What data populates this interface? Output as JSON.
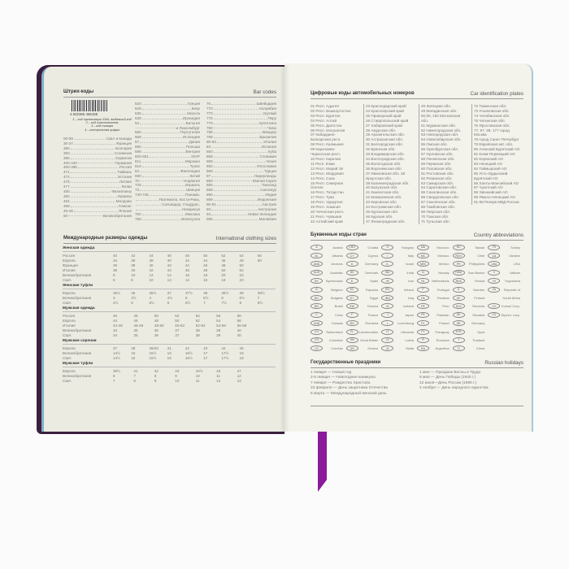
{
  "left_page": {
    "barcodes": {
      "title_ru": "Штрих-коды",
      "title_en": "Bar codes",
      "sample_number": "4 602365 456186",
      "legend": [
        "1 – код организации EAN, выдавший код",
        "2 – код изготовителя",
        "3 – код товара",
        "4 – контрольная цифра"
      ],
      "columns": [
        [
          [
            "00-09",
            "США и Канада"
          ],
          [
            "30-37",
            "Франция"
          ],
          [
            "380",
            "Болгария"
          ],
          [
            "383",
            "Словения"
          ],
          [
            "385",
            "Хорватия"
          ],
          [
            "400-440",
            "Германия"
          ],
          [
            "460-469",
            "Россия"
          ],
          [
            "471",
            "Тайвань"
          ],
          [
            "474",
            "Эстония"
          ],
          [
            "475",
            "Латвия"
          ],
          [
            "477",
            "Литва"
          ],
          [
            "480",
            "Филиппины"
          ],
          [
            "482",
            "Украина"
          ],
          [
            "484",
            "Молдова"
          ],
          [
            "489",
            "Гонконг"
          ],
          [
            "45-49",
            "Япония"
          ],
          [
            "50",
            "Великобритания"
          ]
        ],
        [
          [
            "520",
            "Греция"
          ],
          [
            "529",
            "Кипр"
          ],
          [
            "535",
            "Мальта"
          ],
          [
            "539",
            "Ирландия"
          ],
          [
            "54",
            "Бельгия"
          ],
          [
            "",
            "и Люксембург"
          ],
          [
            "560",
            "Португалия"
          ],
          [
            "569",
            "Исландия"
          ],
          [
            "57",
            "Дания"
          ],
          [
            "590",
            "Польша"
          ],
          [
            "599",
            "Венгрия"
          ],
          [
            "600-601",
            "ЮАР"
          ],
          [
            "611",
            "Марокко"
          ],
          [
            "619",
            "Тунис"
          ],
          [
            "64",
            "Финляндия"
          ],
          [
            "690",
            "Китай"
          ],
          [
            "70",
            "Норвегия"
          ],
          [
            "729",
            "Израиль"
          ],
          [
            "73",
            "Швеция"
          ],
          [
            "740-745",
            "Панама,"
          ],
          [
            "",
            "Гватемала, Коста-Рика,"
          ],
          [
            "",
            "Сальвадор, Гондурас,"
          ],
          [
            "",
            "Никарагуа"
          ],
          [
            "750",
            "Мексика"
          ],
          [
            "759",
            "Венесуэла"
          ]
        ],
        [
          [
            "76",
            "Швейцария"
          ],
          [
            "770",
            "Колумбия"
          ],
          [
            "773",
            "Уругвай"
          ],
          [
            "775",
            "Перу"
          ],
          [
            "779",
            "Аргентина"
          ],
          [
            "780",
            "Чили"
          ],
          [
            "786",
            "Эквадор"
          ],
          [
            "789",
            "Бразилия"
          ],
          [
            "80-83",
            "Италия"
          ],
          [
            "84",
            "Испания"
          ],
          [
            "850",
            "Куба"
          ],
          [
            "858",
            "Словакия"
          ],
          [
            "859",
            "Чехия"
          ],
          [
            "860",
            "Югославия"
          ],
          [
            "869",
            "Турция"
          ],
          [
            "87",
            "Нидерланды"
          ],
          [
            "880",
            "Южная Корея"
          ],
          [
            "885",
            "Таиланд"
          ],
          [
            "888",
            "Сингапур"
          ],
          [
            "890",
            "Индия"
          ],
          [
            "899",
            "Индонезия"
          ],
          [
            "90-91",
            "Австрия"
          ],
          [
            "93",
            "Австралия"
          ],
          [
            "94",
            "Новая Зеландия"
          ],
          [
            "955",
            "Малайзия"
          ]
        ]
      ]
    },
    "clothing": {
      "title_ru": "Международные размеры одежды",
      "title_en": "International clothing sizes",
      "groups": [
        {
          "name": "Женская одежда",
          "rows": [
            [
              "Россия",
              "40",
              "42",
              "44",
              "46",
              "48",
              "50",
              "52",
              "54",
              "56"
            ],
            [
              "Европа",
              "34",
              "36",
              "38",
              "40",
              "42",
              "44",
              "46",
              "48",
              "50"
            ],
            [
              "Франция",
              "36",
              "38",
              "40",
              "42",
              "44",
              "46",
              "48",
              "50"
            ],
            [
              "Италия",
              "38",
              "40",
              "42",
              "44",
              "46",
              "48",
              "50",
              "52"
            ],
            [
              "Великобритания",
              "8",
              "10",
              "12",
              "14",
              "16",
              "18",
              "20",
              "22"
            ],
            [
              "США",
              "6",
              "8",
              "10",
              "12",
              "14",
              "16",
              "18",
              "20"
            ]
          ]
        },
        {
          "name": "Женские туфли",
          "rows": [
            [
              "Европа",
              "35½",
              "36",
              "36½",
              "37",
              "37½",
              "38",
              "38½",
              "39",
              "39½"
            ],
            [
              "Великобритания",
              "3",
              "3½",
              "4",
              "4½",
              "5",
              "5½",
              "6",
              "6½",
              "7"
            ],
            [
              "США",
              "4½",
              "5",
              "5½",
              "6",
              "6½",
              "7",
              "7½",
              "8",
              "8½"
            ]
          ]
        },
        {
          "name": "Мужская одежда",
          "rows": [
            [
              "Россия",
              "46",
              "48",
              "50",
              "52",
              "54",
              "56",
              "58"
            ],
            [
              "Европа",
              "44",
              "46",
              "48",
              "50",
              "52",
              "54",
              "56"
            ],
            [
              "Италия",
              "44-46",
              "46-48",
              "48-50",
              "50-52",
              "52-54",
              "54-56",
              "56-58"
            ],
            [
              "Великобритания",
              "34",
              "35",
              "36",
              "37",
              "38",
              "39",
              "40"
            ],
            [
              "США",
              "34",
              "35",
              "36",
              "37",
              "38",
              "39",
              "40"
            ]
          ]
        },
        {
          "name": "Мужские сорочки",
          "rows": [
            [
              "Европа",
              "37",
              "38",
              "39/40",
              "41",
              "42",
              "43",
              "44",
              "45"
            ],
            [
              "Великобритания",
              "14½",
              "15",
              "15½",
              "16",
              "16½",
              "17",
              "17½",
              "18"
            ],
            [
              "США",
              "14½",
              "15",
              "15½",
              "16",
              "16½",
              "17",
              "17½",
              "18"
            ]
          ]
        },
        {
          "name": "Мужские туфли",
          "rows": [
            [
              "Европа",
              "39½",
              "41",
              "42",
              "43",
              "44½",
              "46",
              "47"
            ],
            [
              "Великобритания",
              "6",
              "7",
              "8",
              "9",
              "10",
              "11",
              "12"
            ],
            [
              "США",
              "7",
              "8",
              "9",
              "10",
              "11",
              "12",
              "13"
            ]
          ]
        }
      ]
    }
  },
  "right_page": {
    "plates": {
      "title_ru": "Цифровые коды автомобильных номеров",
      "title_en": "Car identification plates",
      "columns": [
        [
          "01 Респ. Адыгея",
          "02 Респ. Башкортостан",
          "03 Респ. Бурятия",
          "04 Респ. Алтай",
          "05 Респ. Дагестан",
          "06 Респ. Ингушетия",
          "07 Кабардино-",
          "Балкарская респ.",
          "08 Респ. Калмыкия",
          "09 Карачаево-",
          "Черкесская респ.",
          "10 Респ. Карелия",
          "11 Респ. Коми",
          "12 Респ. Марий Эл",
          "13 Респ. Мордовия",
          "14 Респ. Саха",
          "15 Респ. Северная",
          "Осетия",
          "16 Респ. Татарстан",
          "17 Респ. Тува",
          "18 Респ. Удмуртия",
          "19 Респ. Хакасия",
          "20 Чеченская респ.",
          "21 Респ. Чувашия",
          "22 Алтайский край"
        ],
        [
          "23 Краснодарский край",
          "24 Красноярский край",
          "25 Приморский край",
          "26 Ставропольский край",
          "27 Хабаровский край",
          "28 Амурская обл.",
          "29 Архангельская обл.",
          "30 Астраханская обл.",
          "31 Белгородская обл.",
          "32 Брянская обл.",
          "33 Владимирская обл.",
          "34 Волгоградская обл.",
          "35 Вологодская обл.",
          "36 Воронежская обл.",
          "37 Ивановская обл. 38",
          "Иркутская обл.",
          "39 Калининградская обл.",
          "40 Калужская обл.",
          "41 Камчатская обл.",
          "42 Кемеровская обл.",
          "43 Кировская обл.",
          "44 Костромская обл.",
          "45 Курганская обл.",
          "46 Курская обл.",
          "47 Ленинградская обл."
        ],
        [
          "48 Липецкая обл.",
          "49 Магаданская обл.",
          "50,90, 150 Московская",
          "обл.",
          "51 Мурманская обл.",
          "52 Нижегородская обл.",
          "53 Новгородская обл.",
          "54 Новосибирская обл.",
          "55 Омская обл.",
          "56 Оренбургская обл.",
          "57 Орловская обл.",
          "58 Пензенская обл.",
          "59 Пермская обл.",
          "60 Псковская обл.",
          "61 Ростовская обл.",
          "62 Рязанская обл.",
          "63 Самарская обл.",
          "64 Саратовская обл.",
          "65 Сахалинская обл.",
          "66 Свердловская обл.",
          "67 Смоленская обл.",
          "68 Тамбовская обл.",
          "69 Тверская обл.",
          "70 Томская обл.",
          "71 Тульская обл."
        ],
        [
          "72 Тюменская обл.",
          "73 Ульяновская обл.",
          "74 Челябинская обл.",
          "75 Читинская обл.",
          "76 Ярославская обл.",
          "77, 97, 99, 177 город",
          "Москва",
          "78 город Санкт-Петербург",
          "79 Еврейская авт. обл.",
          "80 Агинский Бурятский АО",
          "81 Коми-Пермяцкий АО",
          "82 Корякский АО",
          "83 Ненецкий АО",
          "84 Таймырский АО",
          "85 Усть-Ордынский",
          "Бурятский АО",
          "86 Ханты-Мансийский АО",
          "87 Чукотский АО",
          "88 Эвенкийский АО",
          "89 Ямало-Ненецкий АО",
          "91-98 Резерв МВД России"
        ]
      ]
    },
    "countries": {
      "title_ru": "Буквенные коды стран",
      "title_en": "Country abbreviations",
      "items": [
        [
          "A",
          "Austria"
        ],
        [
          "AL",
          "Albania"
        ],
        [
          "AND",
          "Andorra"
        ],
        [
          "AUS",
          "Australia"
        ],
        [
          "BY",
          "Byelorussia"
        ],
        [
          "B",
          "Belgium"
        ],
        [
          "BG",
          "Bulgaria"
        ],
        [
          "BR",
          "Brasil"
        ],
        [
          "C",
          "Cuba"
        ],
        [
          "CND",
          "Canada"
        ],
        [
          "CH",
          "Switzerland"
        ],
        [
          "CO",
          "Columbia"
        ],
        [
          "CZ",
          "Czechia"
        ],
        [
          "CRO",
          "Croatia"
        ],
        [
          "CY",
          "Cyprus"
        ],
        [
          "D",
          "Germany"
        ],
        [
          "DK",
          "Denmark"
        ],
        [
          "E",
          "Spain"
        ],
        [
          "EC",
          "Equador"
        ],
        [
          "ET",
          "Egypt"
        ],
        [
          "EW",
          "Estonia"
        ],
        [
          "F",
          "France"
        ],
        [
          "RO",
          "Romania"
        ],
        [
          "FL",
          "Liechtenstein"
        ],
        [
          "GB",
          "Great Britain"
        ],
        [
          "GR",
          "Greece"
        ],
        [
          "H",
          "Hungary"
        ],
        [
          "I",
          "Italy"
        ],
        [
          "IL",
          "Israel"
        ],
        [
          "IND",
          "India"
        ],
        [
          "IR",
          "Iran"
        ],
        [
          "IRL",
          "Ireland"
        ],
        [
          "IRQ",
          "Iraq"
        ],
        [
          "IS",
          "Iceland"
        ],
        [
          "J",
          "Japan"
        ],
        [
          "L",
          "Luxemburg"
        ],
        [
          "LT",
          "Lithuania"
        ],
        [
          "LV",
          "Latvia"
        ],
        [
          "M",
          "Malta"
        ],
        [
          "MA",
          "Morocco"
        ],
        [
          "MC",
          "Monaco"
        ],
        [
          "MEX",
          "Mexico"
        ],
        [
          "N",
          "Norway"
        ],
        [
          "NL",
          "Netherlands"
        ],
        [
          "P",
          "Portugal"
        ],
        [
          "PA",
          "Panama"
        ],
        [
          "PE",
          "Peru"
        ],
        [
          "PK",
          "Pakistan"
        ],
        [
          "PL",
          "Poland"
        ],
        [
          "PY",
          "Paraguay"
        ],
        [
          "R",
          "Romania"
        ],
        [
          "RA",
          "Argentina"
        ],
        [
          "RC",
          "Taiwan"
        ],
        [
          "RCH",
          "Chile"
        ],
        [
          "PH",
          "Philippines"
        ],
        [
          "RSM",
          "San Marino"
        ],
        [
          "RUS",
          "Russia"
        ],
        [
          "S",
          "Sweden"
        ],
        [
          "SF",
          "Finland"
        ],
        [
          "SLO",
          "Slovenia"
        ],
        [
          "SK",
          "Slovakia"
        ],
        [
          "SR",
          "Germany"
        ],
        [
          "SYR",
          "Syria"
        ],
        [
          "T",
          "Thailand"
        ],
        [
          "TJ",
          "China"
        ],
        [
          "TR",
          "Turkey"
        ],
        [
          "UA",
          "Ukraine"
        ],
        [
          "USA",
          "USA"
        ],
        [
          "V",
          "Vatican"
        ],
        [
          "YV",
          "Yugoslavia"
        ],
        [
          "ZA",
          "Republic of"
        ],
        [
          "",
          "South Africa"
        ],
        [
          "CC",
          "Consul Corp."
        ],
        [
          "CD",
          "Diplom. corp."
        ],
        [
          "",
          ""
        ],
        [
          "",
          ""
        ],
        [
          "",
          ""
        ],
        [
          "",
          ""
        ]
      ]
    },
    "holidays": {
      "title_ru": "Государственные праздники",
      "title_en": "Russian holidays",
      "left": [
        "1 января — Новый год",
        "2-5 января — Новогодние каникулы",
        "7 января — Рождество Христово",
        "23 февраля — День защитника Отечества",
        "8 марта — Международный женский день"
      ],
      "right": [
        "1 мая — Праздник Весны и Труда",
        "9 мая — День Победы (1945 г.)",
        "12 июня—День России (1990 г.)",
        "4 ноября — День народного единства"
      ]
    }
  },
  "colors": {
    "cover": "#3b1f3e",
    "ribbon": "#8a1b9a",
    "page": "#f3f2eb"
  }
}
